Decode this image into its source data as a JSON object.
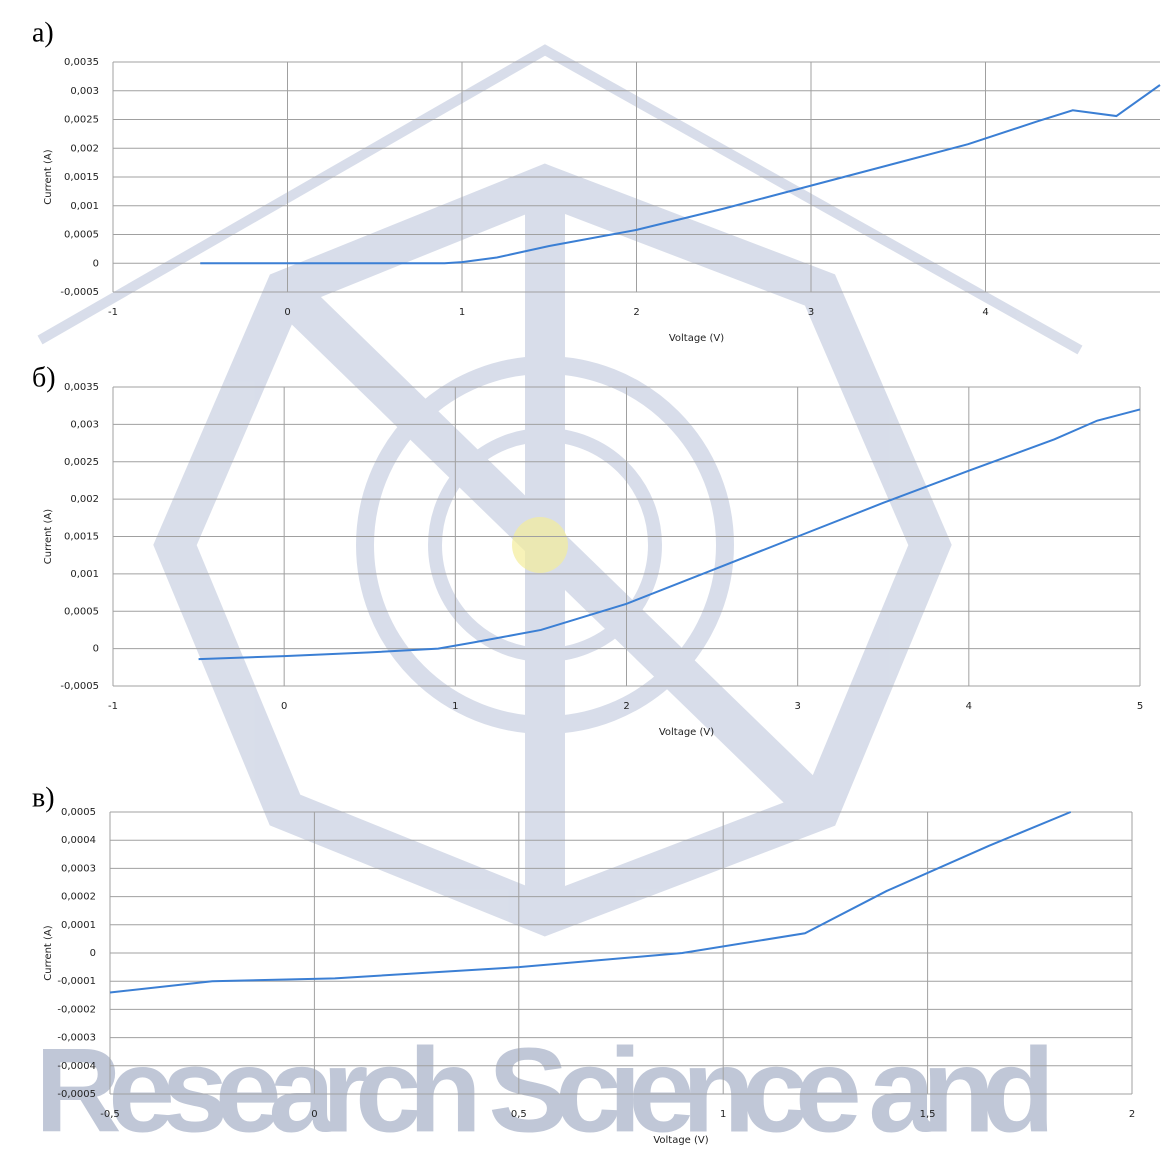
{
  "chart_data": [
    {
      "type": "line",
      "title": "а)",
      "xlabel": "Voltage (V)",
      "ylabel": "Current (A)",
      "x": [
        -0.5,
        0,
        0.5,
        0.9,
        1.0,
        1.2,
        1.5,
        2,
        2.5,
        3,
        3.5,
        3.9,
        4.3,
        4.5,
        4.75,
        5
      ],
      "series": [
        {
          "color": "#3b7fd4",
          "values": [
            0,
            0,
            0,
            0,
            2e-05,
            0.0001,
            0.0003,
            0.00058,
            0.00095,
            0.00135,
            0.00175,
            0.00207,
            0.00247,
            0.00266,
            0.00256,
            0.0031
          ]
        }
      ],
      "xlim": [
        -1,
        5
      ],
      "xticks": [
        -1,
        0,
        1,
        2,
        3,
        4
      ],
      "ylim": [
        -0.0005,
        0.0035
      ],
      "yticks": [
        {
          "value": -0.0005,
          "label": "-0,0005"
        },
        0,
        {
          "value": 0.0005,
          "label": "0,0005"
        },
        {
          "value": 0.001,
          "label": "0,001"
        },
        {
          "value": 0.0015,
          "label": "0,0015"
        },
        {
          "value": 0.002,
          "label": "0,002"
        },
        {
          "value": 0.0025,
          "label": "0,0025"
        },
        {
          "value": 0.003,
          "label": "0,003"
        },
        {
          "value": 0.0035,
          "label": "0,0035"
        }
      ],
      "grid": true
    },
    {
      "type": "line",
      "title": "б)",
      "xlabel": "Voltage (V)",
      "ylabel": "Current (A)",
      "x": [
        -0.5,
        0,
        0.5,
        0.9,
        1.1,
        1.5,
        2,
        2.5,
        3,
        3.5,
        4,
        4.5,
        4.75,
        5
      ],
      "series": [
        {
          "color": "#3b7fd4",
          "values": [
            -0.00014,
            -0.0001,
            -5e-05,
            0,
            8e-05,
            0.00025,
            0.0006,
            0.00105,
            0.0015,
            0.00195,
            0.00238,
            0.0028,
            0.00305,
            0.0032
          ]
        }
      ],
      "xlim": [
        -1,
        5
      ],
      "xticks": [
        -1,
        0,
        1,
        2,
        3,
        4,
        5
      ],
      "ylim": [
        -0.0005,
        0.0035
      ],
      "yticks": [
        {
          "value": -0.0005,
          "label": "-0,0005"
        },
        0,
        {
          "value": 0.0005,
          "label": "0,0005"
        },
        {
          "value": 0.001,
          "label": "0,001"
        },
        {
          "value": 0.0015,
          "label": "0,0015"
        },
        {
          "value": 0.002,
          "label": "0,002"
        },
        {
          "value": 0.0025,
          "label": "0,0025"
        },
        {
          "value": 0.003,
          "label": "0,003"
        },
        {
          "value": 0.0035,
          "label": "0,0035"
        }
      ],
      "grid": true
    },
    {
      "type": "line",
      "title": "в)",
      "xlabel": "Voltage (V)",
      "ylabel": "Current (A)",
      "x": [
        -0.5,
        -0.25,
        0.05,
        0.5,
        0.9,
        1.2,
        1.4,
        1.65,
        1.85
      ],
      "series": [
        {
          "color": "#3b7fd4",
          "values": [
            -0.00014,
            -0.0001,
            -9e-05,
            -5e-05,
            0,
            7e-05,
            0.00022,
            0.00038,
            0.0005
          ]
        }
      ],
      "xlim": [
        -0.5,
        2
      ],
      "xticks": [
        {
          "value": -0.5,
          "label": "-0,5"
        },
        0,
        {
          "value": 0.5,
          "label": "0,5"
        },
        1,
        {
          "value": 1.5,
          "label": "1,5"
        },
        2
      ],
      "ylim": [
        -0.0005,
        0.0005
      ],
      "yticks": [
        {
          "value": -0.0005,
          "label": "-0,0005"
        },
        {
          "value": -0.0004,
          "label": "-0,0004"
        },
        {
          "value": -0.0003,
          "label": "-0,0003"
        },
        {
          "value": -0.0002,
          "label": "-0,0002"
        },
        {
          "value": -0.0001,
          "label": "-0,0001"
        },
        0,
        {
          "value": 0.0001,
          "label": "0,0001"
        },
        {
          "value": 0.0002,
          "label": "0,0002"
        },
        {
          "value": 0.0003,
          "label": "0,0003"
        },
        {
          "value": 0.0004,
          "label": "0,0004"
        },
        {
          "value": 0.0005,
          "label": "0,0005"
        }
      ],
      "grid": true
    }
  ],
  "watermark": "Research Science and"
}
